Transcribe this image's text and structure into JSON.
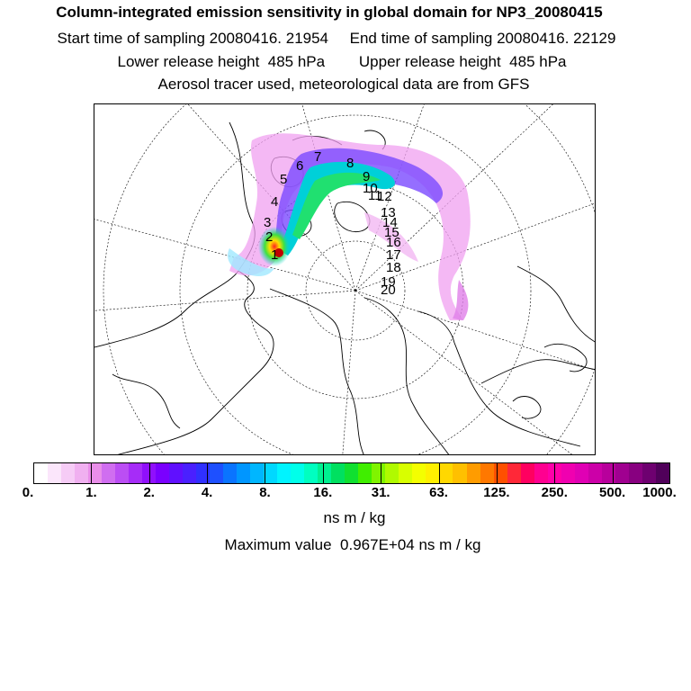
{
  "title": "Column-integrated emission sensitivity in global domain for NP3_20080415",
  "line1": "Start time of sampling 20080416. 21954     End time of sampling 20080416. 22129",
  "line2": "Lower release height  485 hPa        Upper release height  485 hPa",
  "line3": "Aerosol tracer used, meteorological data are from GFS",
  "colorbar": {
    "colors": [
      "#ffffff",
      "#fbe6fb",
      "#f6ccf6",
      "#f0b0f0",
      "#e98ee9",
      "#d06ef0",
      "#bb4ef4",
      "#a62cf8",
      "#9010fc",
      "#7a00ff",
      "#6010ff",
      "#4a20ff",
      "#3030ff",
      "#1e50ff",
      "#0a74ff",
      "#0096ff",
      "#00b6ff",
      "#00d8ff",
      "#00f4ff",
      "#00ffea",
      "#00ffc0",
      "#00f090",
      "#00e060",
      "#10e030",
      "#40ee00",
      "#80f400",
      "#b0fa00",
      "#d8ff00",
      "#f4ff00",
      "#fff000",
      "#ffd800",
      "#ffc000",
      "#ff9c00",
      "#ff7800",
      "#ff5000",
      "#ff2838",
      "#ff0060",
      "#ff0090",
      "#ff00a8",
      "#f000b0",
      "#e000b4",
      "#cc00a8",
      "#b8009c",
      "#a00090",
      "#880080",
      "#6e0070",
      "#50005a"
    ],
    "ticks": [
      "0.",
      "1.",
      "2.",
      "4.",
      "8.",
      "16.",
      "31.",
      "63.",
      "125.",
      "250.",
      "500.",
      "1000."
    ],
    "unit": "ns m / kg"
  },
  "max_value_text": "Maximum value  0.967E+04 ns m / kg",
  "map": {
    "projection": "north polar stereographic",
    "time_labels": [
      "1",
      "2",
      "3",
      "4",
      "5",
      "6",
      "7",
      "8",
      "9",
      "10",
      "11",
      "12",
      "13",
      "14",
      "15",
      "16",
      "17",
      "18",
      "19",
      "20"
    ]
  }
}
